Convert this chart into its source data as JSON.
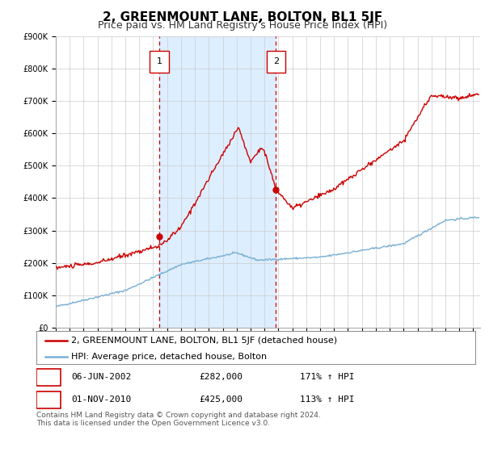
{
  "title": "2, GREENMOUNT LANE, BOLTON, BL1 5JF",
  "subtitle": "Price paid vs. HM Land Registry's House Price Index (HPI)",
  "ylim": [
    0,
    900000
  ],
  "xlim_start": 1995.0,
  "xlim_end": 2025.5,
  "yticks": [
    0,
    100000,
    200000,
    300000,
    400000,
    500000,
    600000,
    700000,
    800000,
    900000
  ],
  "ytick_labels": [
    "£0",
    "£100K",
    "£200K",
    "£300K",
    "£400K",
    "£500K",
    "£600K",
    "£700K",
    "£800K",
    "£900K"
  ],
  "sale1_date": 2002.44,
  "sale1_price": 282000,
  "sale1_label": "1",
  "sale1_date_str": "06-JUN-2002",
  "sale1_price_str": "£282,000",
  "sale1_hpi_str": "171% ↑ HPI",
  "sale2_date": 2010.83,
  "sale2_price": 425000,
  "sale2_label": "2",
  "sale2_date_str": "01-NOV-2010",
  "sale2_price_str": "£425,000",
  "sale2_hpi_str": "113% ↑ HPI",
  "line1_color": "#cc0000",
  "line2_color": "#7ab0d4",
  "shaded_region_color": "#ddeeff",
  "grid_color": "#cccccc",
  "background_color": "#ffffff",
  "legend1_label": "2, GREENMOUNT LANE, BOLTON, BL1 5JF (detached house)",
  "legend2_label": "HPI: Average price, detached house, Bolton",
  "footer_text": "Contains HM Land Registry data © Crown copyright and database right 2024.\nThis data is licensed under the Open Government Licence v3.0.",
  "title_fontsize": 11,
  "subtitle_fontsize": 9,
  "tick_fontsize": 7,
  "legend_fontsize": 8,
  "footer_fontsize": 6.5,
  "annot_fontsize": 8
}
